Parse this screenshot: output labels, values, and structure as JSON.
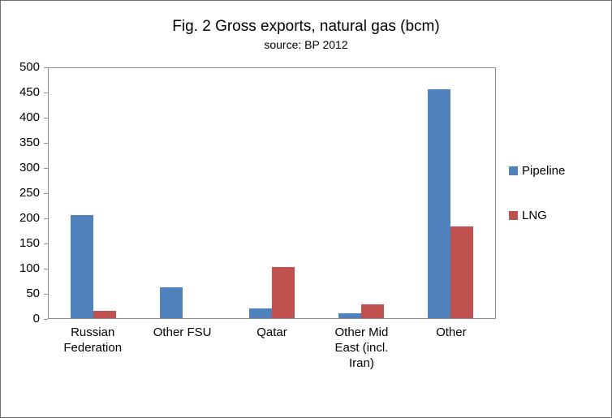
{
  "chart_data": {
    "type": "bar",
    "title": "Fig. 2 Gross exports, natural gas (bcm)",
    "subtitle": "source: BP 2012",
    "categories": [
      "Russian Federation",
      "Other FSU",
      "Qatar",
      "Other Mid East (incl. Iran)",
      "Other"
    ],
    "series": [
      {
        "name": "Pipeline",
        "color": "#4f81bd",
        "values": [
          207,
          62,
          20,
          10,
          458
        ]
      },
      {
        "name": "LNG",
        "color": "#c0504d",
        "values": [
          15,
          0,
          102,
          28,
          184
        ]
      }
    ],
    "ylim": [
      0,
      500
    ],
    "ytick_step": 50,
    "yticks": [
      0,
      50,
      100,
      150,
      200,
      250,
      300,
      350,
      400,
      450,
      500
    ],
    "grid": false,
    "legend_position": "right",
    "xlabel": "",
    "ylabel": ""
  }
}
